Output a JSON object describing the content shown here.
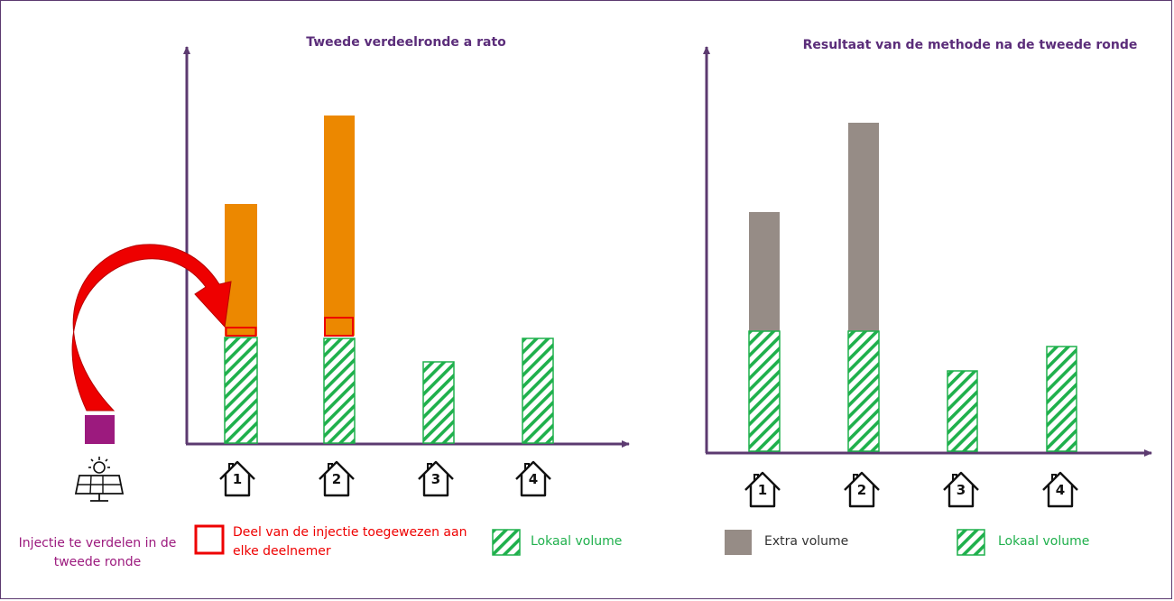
{
  "left_chart": {
    "title": "Tweede verdeelronde a rato",
    "house_labels": [
      "1",
      "2",
      "3",
      "4"
    ]
  },
  "right_chart": {
    "title": "Resultaat van de methode na de tweede ronde",
    "house_labels": [
      "1",
      "2",
      "3",
      "4"
    ]
  },
  "legend": {
    "injection_label": "Injectie te verdelen in de tweede ronde",
    "share_label": "Deel van de injectie toegewezen aan elke deelnemer",
    "local_volume_label": "Lokaal volume",
    "extra_volume_label": "Extra volume",
    "local_volume_label_right": "Lokaal volume"
  },
  "colors": {
    "axis": "#5c3a70",
    "orange": "#ec8800",
    "gray": "#968c86",
    "green": "#1fb04c",
    "red": "#ee0000",
    "purple": "#9c1a7e",
    "title": "#5b2d7a"
  },
  "chart_data": [
    {
      "type": "bar",
      "title": "Tweede verdeelronde a rato",
      "categories": [
        "1",
        "2",
        "3",
        "4"
      ],
      "series": [
        {
          "name": "Lokaal volume",
          "values": [
            3.0,
            3.0,
            2.3,
            3.0
          ]
        },
        {
          "name": "Deel van de injectie toegewezen aan elke deelnemer",
          "values": [
            0.25,
            0.6,
            0,
            0
          ]
        },
        {
          "values": [
            3.5,
            6.0,
            0,
            0
          ]
        }
      ]
    },
    {
      "type": "bar",
      "title": "Resultaat van de methode na de tweede ronde",
      "categories": [
        "1",
        "2",
        "3",
        "4"
      ],
      "series": [
        {
          "name": "Lokaal volume",
          "values": [
            3.4,
            3.4,
            2.3,
            2.9
          ]
        },
        {
          "name": "Extra volume",
          "values": [
            3.3,
            6.0,
            0,
            0
          ]
        }
      ]
    }
  ]
}
